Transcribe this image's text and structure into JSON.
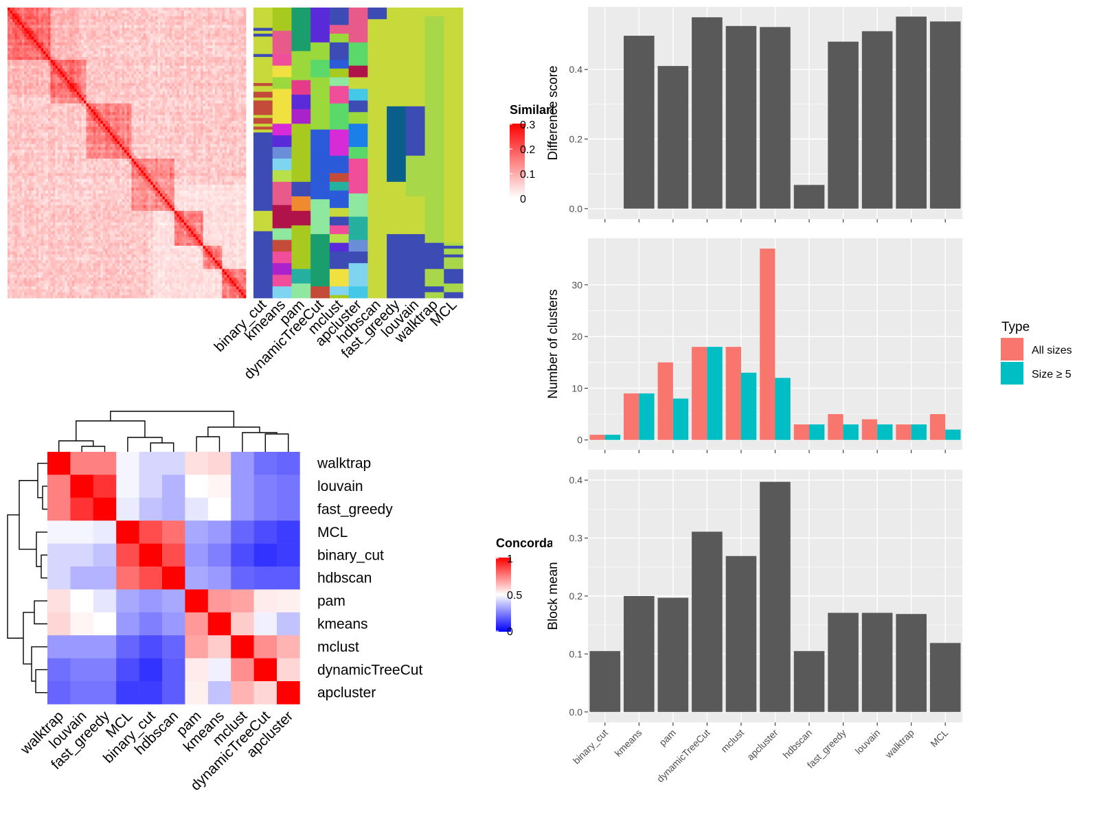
{
  "methods": [
    "binary_cut",
    "kmeans",
    "pam",
    "dynamicTreeCut",
    "mclust",
    "apcluster",
    "hdbscan",
    "fast_greedy",
    "louvain",
    "walktrap",
    "MCL"
  ],
  "similarity_legend": {
    "title": "Similarity",
    "ticks": [
      "0.3",
      "0.2",
      "0.1",
      "0"
    ],
    "colors": [
      "#ffffff",
      "#ff0000"
    ]
  },
  "concordance_legend": {
    "title": "Concordance",
    "ticks": [
      "1",
      "0.5",
      "0"
    ],
    "colors": [
      "#0000ff",
      "#ffffff",
      "#ff0000"
    ]
  },
  "concordance_order": [
    "walktrap",
    "louvain",
    "fast_greedy",
    "MCL",
    "binary_cut",
    "hdbscan",
    "pam",
    "kmeans",
    "mclust",
    "dynamicTreeCut",
    "apcluster"
  ],
  "colors": {
    "bar": "#595959",
    "panel": "#ebebeb",
    "grid": "#ffffff",
    "all_sizes": "#f8766d",
    "size_ge5": "#00bfc4"
  },
  "chart_data": [
    {
      "type": "heatmap",
      "title": "",
      "legend_title": "Similarity",
      "value_range": [
        0,
        0.3
      ],
      "description_rows": 100
    },
    {
      "type": "heatmap",
      "legend_title": "Concordance",
      "rows": [
        "walktrap",
        "louvain",
        "fast_greedy",
        "MCL",
        "binary_cut",
        "hdbscan",
        "pam",
        "kmeans",
        "mclust",
        "dynamicTreeCut",
        "apcluster"
      ],
      "cols": [
        "walktrap",
        "louvain",
        "fast_greedy",
        "MCL",
        "binary_cut",
        "hdbscan",
        "pam",
        "kmeans",
        "mclust",
        "dynamicTreeCut",
        "apcluster"
      ],
      "values": [
        [
          1.0,
          0.75,
          0.75,
          0.48,
          0.42,
          0.42,
          0.56,
          0.58,
          0.3,
          0.22,
          0.2
        ],
        [
          0.75,
          1.0,
          0.9,
          0.48,
          0.42,
          0.35,
          0.5,
          0.52,
          0.3,
          0.25,
          0.23
        ],
        [
          0.75,
          0.9,
          1.0,
          0.46,
          0.38,
          0.35,
          0.45,
          0.5,
          0.3,
          0.25,
          0.23
        ],
        [
          0.48,
          0.48,
          0.46,
          1.0,
          0.85,
          0.78,
          0.33,
          0.3,
          0.2,
          0.15,
          0.12
        ],
        [
          0.42,
          0.42,
          0.38,
          0.85,
          1.0,
          0.85,
          0.3,
          0.25,
          0.15,
          0.1,
          0.12
        ],
        [
          0.42,
          0.35,
          0.35,
          0.78,
          0.85,
          1.0,
          0.33,
          0.3,
          0.2,
          0.18,
          0.18
        ],
        [
          0.56,
          0.5,
          0.45,
          0.33,
          0.3,
          0.33,
          1.0,
          0.7,
          0.68,
          0.54,
          0.53
        ],
        [
          0.58,
          0.52,
          0.5,
          0.3,
          0.25,
          0.3,
          0.7,
          1.0,
          0.6,
          0.47,
          0.38
        ],
        [
          0.3,
          0.3,
          0.3,
          0.2,
          0.15,
          0.2,
          0.68,
          0.6,
          1.0,
          0.72,
          0.65
        ],
        [
          0.22,
          0.25,
          0.25,
          0.15,
          0.1,
          0.18,
          0.54,
          0.47,
          0.72,
          1.0,
          0.58
        ],
        [
          0.2,
          0.23,
          0.23,
          0.12,
          0.12,
          0.18,
          0.53,
          0.38,
          0.65,
          0.58,
          1.0
        ]
      ]
    },
    {
      "type": "bar",
      "categories": [
        "binary_cut",
        "kmeans",
        "pam",
        "dynamicTreeCut",
        "mclust",
        "apcluster",
        "hdbscan",
        "fast_greedy",
        "louvain",
        "walktrap",
        "MCL"
      ],
      "values": [
        0.0,
        0.497,
        0.41,
        0.55,
        0.525,
        0.522,
        0.068,
        0.48,
        0.51,
        0.552,
        0.538
      ],
      "ylabel": "Difference score",
      "ylim": [
        -0.03,
        0.58
      ],
      "yticks": [
        "0.0",
        "0.2",
        "0.4"
      ],
      "ytick_values": [
        0,
        0.2,
        0.4
      ]
    },
    {
      "type": "bar",
      "categories": [
        "binary_cut",
        "kmeans",
        "pam",
        "dynamicTreeCut",
        "mclust",
        "apcluster",
        "hdbscan",
        "fast_greedy",
        "louvain",
        "walktrap",
        "MCL"
      ],
      "series": [
        {
          "name": "All sizes",
          "values": [
            1,
            9,
            15,
            18,
            18,
            37,
            3,
            5,
            4,
            3,
            5
          ]
        },
        {
          "name": "Size ≥ 5",
          "values": [
            1,
            9,
            8,
            18,
            13,
            12,
            3,
            3,
            3,
            3,
            2
          ]
        }
      ],
      "ylabel": "Number of clusters",
      "ylim": [
        -1.9,
        39.0
      ],
      "yticks": [
        "0",
        "10",
        "20",
        "30"
      ],
      "ytick_values": [
        0,
        10,
        20,
        30
      ],
      "legend_title": "Type",
      "legend_position": "right"
    },
    {
      "type": "bar",
      "categories": [
        "binary_cut",
        "kmeans",
        "pam",
        "dynamicTreeCut",
        "mclust",
        "apcluster",
        "hdbscan",
        "fast_greedy",
        "louvain",
        "walktrap",
        "MCL"
      ],
      "values": [
        0.105,
        0.2,
        0.197,
        0.311,
        0.269,
        0.397,
        0.105,
        0.171,
        0.171,
        0.169,
        0.119
      ],
      "ylabel": "Block mean",
      "ylim": [
        -0.018,
        0.418
      ],
      "yticks": [
        "0.0",
        "0.1",
        "0.2",
        "0.3",
        "0.4"
      ],
      "ytick_values": [
        0,
        0.1,
        0.2,
        0.3,
        0.4
      ]
    }
  ]
}
